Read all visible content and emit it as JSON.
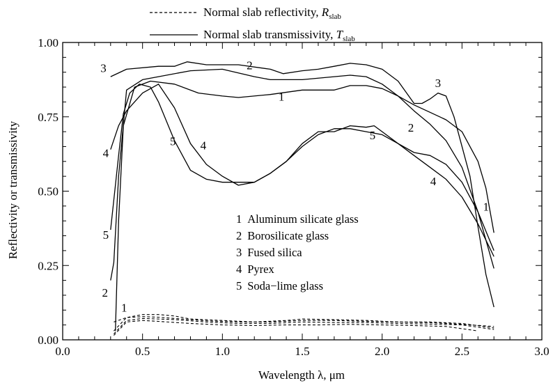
{
  "chart_data": {
    "type": "line",
    "title": "",
    "xlabel": "Wavelength λ, μm",
    "ylabel": "Reflectivity or transmissivity",
    "xlim": [
      0.0,
      3.0
    ],
    "ylim": [
      0.0,
      1.0
    ],
    "x_ticks": [
      "0.0",
      "0.5",
      "1.0",
      "1.5",
      "2.0",
      "2.5",
      "3.0"
    ],
    "y_ticks": [
      "0.00",
      "0.25",
      "0.50",
      "0.75",
      "1.00"
    ],
    "legend": [
      {
        "style": "dashed",
        "text": "Normal slab reflectivity, ",
        "symbol": "R",
        "sub": "slab"
      },
      {
        "style": "solid",
        "text": "Normal slab transmissivity, ",
        "symbol": "T",
        "sub": "slab"
      }
    ],
    "key": [
      {
        "num": "1",
        "text": "Aluminum silicate glass"
      },
      {
        "num": "2",
        "text": "Borosilicate glass"
      },
      {
        "num": "3",
        "text": "Fused silica"
      },
      {
        "num": "4",
        "text": "Pyrex"
      },
      {
        "num": "5",
        "text": "Soda−lime glass"
      }
    ],
    "series": [
      {
        "id": "1",
        "kind": "transmissivity",
        "x": [
          0.33,
          0.35,
          0.38,
          0.45,
          0.55,
          0.7,
          0.85,
          1.0,
          1.1,
          1.3,
          1.5,
          1.7,
          1.8,
          1.9,
          2.0,
          2.1,
          2.2,
          2.3,
          2.4,
          2.5,
          2.6,
          2.65,
          2.7
        ],
        "y": [
          0.03,
          0.4,
          0.72,
          0.85,
          0.87,
          0.86,
          0.83,
          0.82,
          0.815,
          0.825,
          0.84,
          0.84,
          0.855,
          0.855,
          0.845,
          0.82,
          0.79,
          0.765,
          0.74,
          0.7,
          0.6,
          0.51,
          0.36
        ]
      },
      {
        "id": "2",
        "kind": "transmissivity",
        "x": [
          0.3,
          0.32,
          0.35,
          0.4,
          0.5,
          0.6,
          0.8,
          1.0,
          1.2,
          1.3,
          1.5,
          1.7,
          1.8,
          1.9,
          2.0,
          2.1,
          2.2,
          2.3,
          2.4,
          2.5,
          2.6,
          2.7
        ],
        "y": [
          0.2,
          0.26,
          0.55,
          0.84,
          0.875,
          0.885,
          0.905,
          0.91,
          0.885,
          0.875,
          0.875,
          0.885,
          0.89,
          0.885,
          0.86,
          0.82,
          0.77,
          0.725,
          0.67,
          0.58,
          0.43,
          0.24
        ]
      },
      {
        "id": "3",
        "kind": "transmissivity",
        "x": [
          0.3,
          0.4,
          0.6,
          0.7,
          0.78,
          0.9,
          1.1,
          1.3,
          1.38,
          1.5,
          1.6,
          1.7,
          1.8,
          1.9,
          2.0,
          2.1,
          2.2,
          2.25,
          2.3,
          2.35,
          2.4,
          2.45,
          2.55,
          2.6,
          2.65,
          2.7
        ],
        "y": [
          0.885,
          0.91,
          0.92,
          0.92,
          0.935,
          0.925,
          0.925,
          0.91,
          0.895,
          0.905,
          0.91,
          0.92,
          0.93,
          0.925,
          0.91,
          0.87,
          0.795,
          0.795,
          0.81,
          0.83,
          0.82,
          0.75,
          0.55,
          0.38,
          0.22,
          0.11
        ]
      },
      {
        "id": "4",
        "kind": "transmissivity",
        "x": [
          0.3,
          0.35,
          0.4,
          0.5,
          0.6,
          0.7,
          0.8,
          0.9,
          1.0,
          1.1,
          1.2,
          1.3,
          1.4,
          1.5,
          1.6,
          1.7,
          1.8,
          1.9,
          2.0,
          2.1,
          2.2,
          2.3,
          2.4,
          2.5,
          2.6,
          2.7
        ],
        "y": [
          0.64,
          0.72,
          0.77,
          0.83,
          0.86,
          0.78,
          0.66,
          0.59,
          0.55,
          0.52,
          0.53,
          0.56,
          0.6,
          0.65,
          0.69,
          0.71,
          0.71,
          0.7,
          0.69,
          0.66,
          0.62,
          0.58,
          0.54,
          0.48,
          0.39,
          0.28
        ]
      },
      {
        "id": "5",
        "kind": "transmissivity",
        "x": [
          0.3,
          0.32,
          0.35,
          0.38,
          0.42,
          0.48,
          0.55,
          0.6,
          0.7,
          0.8,
          0.9,
          1.0,
          1.1,
          1.2,
          1.3,
          1.4,
          1.5,
          1.6,
          1.7,
          1.8,
          1.9,
          1.95,
          2.0,
          2.1,
          2.2,
          2.3,
          2.4,
          2.5,
          2.6,
          2.7
        ],
        "y": [
          0.37,
          0.47,
          0.62,
          0.76,
          0.83,
          0.86,
          0.85,
          0.8,
          0.67,
          0.57,
          0.54,
          0.53,
          0.53,
          0.53,
          0.56,
          0.6,
          0.66,
          0.7,
          0.7,
          0.72,
          0.715,
          0.72,
          0.7,
          0.66,
          0.63,
          0.62,
          0.59,
          0.53,
          0.43,
          0.3
        ]
      },
      {
        "id": "R1",
        "kind": "reflectivity",
        "x": [
          0.32,
          0.4,
          0.5,
          0.6,
          0.7,
          0.8,
          1.0,
          1.2,
          1.4,
          1.5,
          1.7,
          1.9,
          2.1,
          2.3,
          2.5,
          2.7
        ],
        "y": [
          0.03,
          0.075,
          0.085,
          0.085,
          0.08,
          0.07,
          0.065,
          0.06,
          0.065,
          0.07,
          0.068,
          0.065,
          0.06,
          0.06,
          0.055,
          0.04
        ]
      },
      {
        "id": "R2",
        "kind": "reflectivity",
        "x": [
          0.32,
          0.4,
          0.5,
          0.6,
          0.7,
          0.9,
          1.1,
          1.3,
          1.5,
          1.7,
          1.9,
          2.1,
          2.3,
          2.5,
          2.7
        ],
        "y": [
          0.02,
          0.065,
          0.072,
          0.07,
          0.068,
          0.06,
          0.055,
          0.055,
          0.06,
          0.058,
          0.058,
          0.055,
          0.053,
          0.05,
          0.035
        ]
      },
      {
        "id": "R3",
        "kind": "reflectivity",
        "x": [
          0.32,
          0.4,
          0.5,
          0.6,
          0.8,
          1.0,
          1.2,
          1.4,
          1.6,
          1.8,
          2.0,
          2.2,
          2.4,
          2.6
        ],
        "y": [
          0.015,
          0.06,
          0.065,
          0.062,
          0.055,
          0.05,
          0.048,
          0.05,
          0.05,
          0.052,
          0.05,
          0.048,
          0.045,
          0.03
        ]
      },
      {
        "id": "R4",
        "kind": "reflectivity",
        "x": [
          0.32,
          0.4,
          0.5,
          0.6,
          0.7,
          0.9,
          1.1,
          1.3,
          1.5,
          1.7,
          1.9,
          2.1,
          2.3,
          2.5,
          2.7
        ],
        "y": [
          0.06,
          0.075,
          0.078,
          0.076,
          0.072,
          0.064,
          0.06,
          0.06,
          0.065,
          0.065,
          0.062,
          0.06,
          0.058,
          0.052,
          0.045
        ]
      }
    ],
    "curve_labels": [
      {
        "text": "1",
        "x": 1.37,
        "y": 0.805
      },
      {
        "text": "1",
        "x": 2.65,
        "y": 0.435
      },
      {
        "text": "1",
        "x": 0.385,
        "y": 0.095
      },
      {
        "text": "2",
        "x": 1.17,
        "y": 0.91
      },
      {
        "text": "2",
        "x": 2.18,
        "y": 0.7
      },
      {
        "text": "2",
        "x": 0.265,
        "y": 0.145
      },
      {
        "text": "3",
        "x": 0.255,
        "y": 0.9
      },
      {
        "text": "3",
        "x": 2.35,
        "y": 0.85
      },
      {
        "text": "4",
        "x": 0.27,
        "y": 0.615
      },
      {
        "text": "4",
        "x": 0.88,
        "y": 0.64
      },
      {
        "text": "4",
        "x": 2.32,
        "y": 0.52
      },
      {
        "text": "5",
        "x": 0.27,
        "y": 0.34
      },
      {
        "text": "5",
        "x": 0.69,
        "y": 0.655
      },
      {
        "text": "5",
        "x": 1.94,
        "y": 0.675
      }
    ]
  }
}
